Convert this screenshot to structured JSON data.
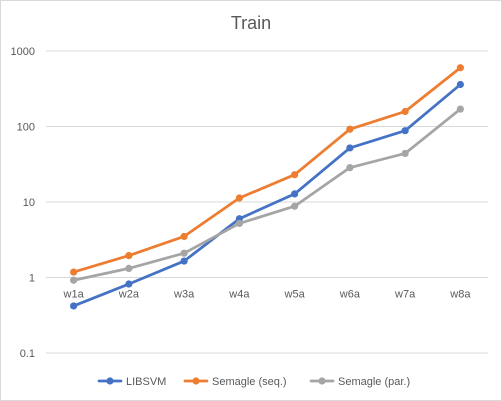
{
  "chart_data": {
    "type": "line",
    "title": "Train",
    "xlabel": "",
    "ylabel": "",
    "categories": [
      "w1a",
      "w2a",
      "w3a",
      "w4a",
      "w5a",
      "w6a",
      "w7a",
      "w8a"
    ],
    "y_scale": "log",
    "ylim": [
      0.1,
      1000
    ],
    "y_ticks": [
      0.1,
      1,
      10,
      100,
      1000
    ],
    "y_tick_labels": [
      "0.1",
      "1",
      "10",
      "100",
      "1000"
    ],
    "grid": "horizontal",
    "legend_position": "bottom",
    "series": [
      {
        "name": "LIBSVM",
        "color": "#4472c4",
        "values": [
          0.42,
          0.82,
          1.65,
          6.0,
          12.8,
          52,
          88,
          360
        ]
      },
      {
        "name": "Semagle (seq.)",
        "color": "#ed7d31",
        "values": [
          1.18,
          1.95,
          3.5,
          11.3,
          23,
          92,
          158,
          600
        ]
      },
      {
        "name": "Semagle (par.)",
        "color": "#a5a5a5",
        "values": [
          0.92,
          1.32,
          2.1,
          5.2,
          8.8,
          28.5,
          44,
          170
        ]
      }
    ]
  }
}
